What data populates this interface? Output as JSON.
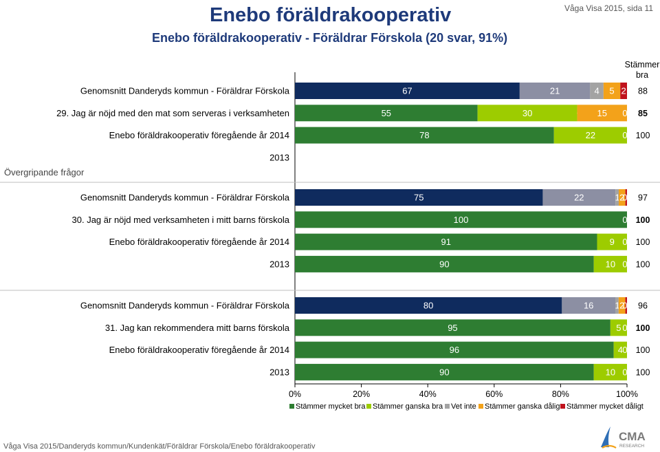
{
  "header": {
    "title": "Enebo föräldrakooperativ",
    "subtitle": "Enebo föräldrakooperativ - Föräldrar Förskola (20 svar, 91%)",
    "page_ref": "Våga Visa 2015, sida 11"
  },
  "footer": {
    "path": "Våga Visa 2015/Danderyds kommun/Kundenkät/Föräldrar Förskola/Enebo föräldrakooperativ"
  },
  "logo": {
    "text": "CMA",
    "subtext": "RESEARCH"
  },
  "colors": {
    "mycket_bra": "#0f2b5e",
    "ganska_bra_navy_group": "#8c8fa3",
    "mycket_bra_green": "#2e7d32",
    "ganska_bra_green": "#9dcc00",
    "vet_inte": "#a3a3a3",
    "ganska_daligt": "#f3a21a",
    "mycket_daligt": "#c0121c"
  },
  "chart_data": {
    "type": "bar",
    "orientation": "horizontal",
    "stacked": "percent",
    "side_label": "Övergripande frågor",
    "total_header": "Stämmer bra",
    "xlim": [
      0,
      100
    ],
    "x_ticks": [
      "0%",
      "20%",
      "40%",
      "60%",
      "80%",
      "100%"
    ],
    "legend": [
      "Stämmer mycket bra",
      "Stämmer ganska bra",
      "Vet inte",
      "Stämmer ganska dåligt",
      "Stämmer mycket dåligt"
    ],
    "legend_placement": "bottom",
    "groups": [
      {
        "rows": [
          {
            "label": "Genomsnitt Danderyds kommun - Föräldrar Förskola",
            "style": "navy",
            "values": [
              67,
              21,
              4,
              5,
              2
            ],
            "total": "88",
            "bold_total": false
          },
          {
            "label": "29. Jag är nöjd med den mat som serveras i verksamheten",
            "style": "green",
            "values": [
              55,
              30,
              0,
              15,
              0
            ],
            "total": "85",
            "bold_total": true
          },
          {
            "label": "Enebo föräldrakooperativ föregående år 2014",
            "style": "green",
            "values": [
              78,
              22,
              0,
              0,
              0
            ],
            "total": "100",
            "bold_total": false
          },
          {
            "label": "2013",
            "style": "empty",
            "values": [],
            "total": "",
            "bold_total": false
          }
        ]
      },
      {
        "rows": [
          {
            "label": "Genomsnitt Danderyds kommun - Föräldrar Förskola",
            "style": "navy",
            "values": [
              75,
              22,
              1,
              2,
              0.5
            ],
            "total": "97",
            "bold_total": false
          },
          {
            "label": "30. Jag är nöjd med verksamheten i mitt barns förskola",
            "style": "green",
            "values": [
              100,
              0,
              0,
              0,
              0
            ],
            "total": "100",
            "bold_total": true
          },
          {
            "label": "Enebo föräldrakooperativ föregående år 2014",
            "style": "green",
            "values": [
              91,
              9,
              0,
              0,
              0
            ],
            "total": "100",
            "bold_total": false
          },
          {
            "label": "2013",
            "style": "green",
            "values": [
              90,
              10,
              0,
              0,
              0
            ],
            "total": "100",
            "bold_total": false
          }
        ]
      },
      {
        "rows": [
          {
            "label": "Genomsnitt Danderyds kommun - Föräldrar Förskola",
            "style": "navy",
            "values": [
              80,
              16,
              1,
              2,
              0.5
            ],
            "total": "96",
            "bold_total": false
          },
          {
            "label": "31. Jag kan rekommendera mitt barns förskola",
            "style": "green",
            "values": [
              95,
              5,
              0,
              0,
              0
            ],
            "total": "100",
            "bold_total": true
          },
          {
            "label": "Enebo föräldrakooperativ föregående år 2014",
            "style": "green",
            "values": [
              96,
              4,
              0,
              0,
              0
            ],
            "total": "100",
            "bold_total": false
          },
          {
            "label": "2013",
            "style": "green",
            "values": [
              90,
              10,
              0,
              0,
              0
            ],
            "total": "100",
            "bold_total": false
          }
        ]
      }
    ],
    "segment_labels": {
      "0": [
        [
          "67",
          "21",
          "4",
          "5",
          "2"
        ],
        [
          "55",
          "30",
          "0",
          "15",
          "0"
        ],
        [
          "78",
          "22",
          "0",
          "",
          ""
        ],
        []
      ],
      "1": [
        [
          "75",
          "22",
          "1",
          "2",
          "0"
        ],
        [
          "100",
          "0",
          "",
          "",
          ""
        ],
        [
          "91",
          "9",
          "0",
          "",
          ""
        ],
        [
          "90",
          "10",
          "0",
          "",
          ""
        ]
      ],
      "2": [
        [
          "80",
          "16",
          "1",
          "2",
          "0"
        ],
        [
          "95",
          "5",
          "0",
          "",
          ""
        ],
        [
          "96",
          "4",
          "0",
          "",
          ""
        ],
        [
          "90",
          "10",
          "0",
          "",
          ""
        ]
      ]
    }
  }
}
